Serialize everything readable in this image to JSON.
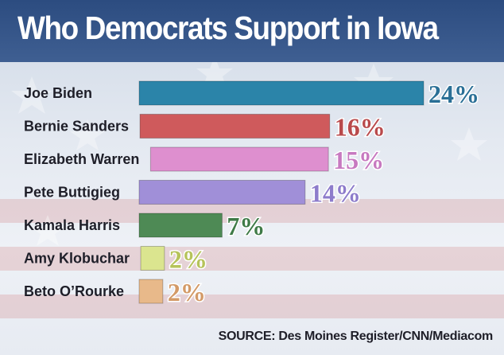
{
  "title": "Who Democrats Support in Iowa",
  "source": "SOURCE: Des Moines Register/CNN/Mediacom",
  "chart_data": {
    "type": "bar",
    "orientation": "horizontal",
    "categories": [
      "Joe Biden",
      "Bernie Sanders",
      "Elizabeth Warren",
      "Pete Buttigieg",
      "Kamala Harris",
      "Amy Klobuchar",
      "Beto O’Rourke"
    ],
    "values": [
      24,
      16,
      15,
      14,
      7,
      2,
      2
    ],
    "value_labels": [
      "24%",
      "16%",
      "15%",
      "14%",
      "7%",
      "2%",
      "2%"
    ],
    "colors": [
      "#2b84a9",
      "#cf5a5c",
      "#de8fcf",
      "#a08fd8",
      "#4e8a55",
      "#dbe58f",
      "#e8b98a"
    ],
    "label_colors": [
      "#2a6f96",
      "#b94a4c",
      "#c779c0",
      "#8d7ccb",
      "#3f7a47",
      "#b6c35a",
      "#d39a67"
    ],
    "grid": false,
    "legend": "none"
  }
}
